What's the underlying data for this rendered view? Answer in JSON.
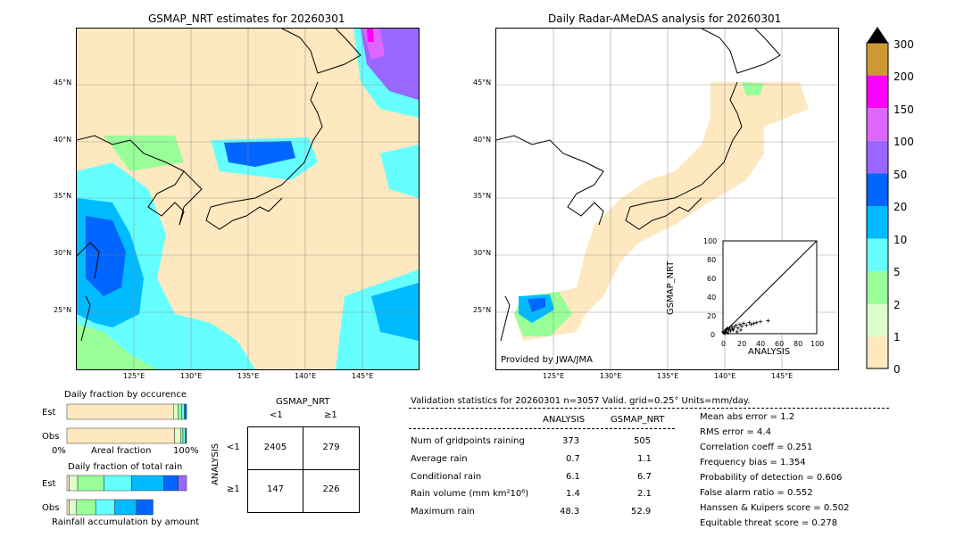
{
  "map_left": {
    "title": "GSMAP_NRT estimates for 20260301",
    "lat_ticks": [
      "45°N",
      "40°N",
      "35°N",
      "30°N",
      "25°N"
    ],
    "lon_ticks": [
      "125°E",
      "130°E",
      "135°E",
      "140°E",
      "145°E"
    ]
  },
  "map_right": {
    "title": "Daily Radar-AMeDAS analysis for 20260301",
    "lat_ticks": [
      "45°N",
      "40°N",
      "35°N",
      "30°N",
      "25°N"
    ],
    "lon_ticks": [
      "125°E",
      "130°E",
      "135°E",
      "140°E",
      "145°E"
    ],
    "credit": "Provided by JWA/JMA"
  },
  "colorbar": {
    "labels": [
      "300",
      "200",
      "150",
      "100",
      "50",
      "20",
      "10",
      "5",
      "2",
      "1",
      "0"
    ],
    "colors": [
      "#cc9933",
      "#ff00ff",
      "#dd66ff",
      "#9966ff",
      "#0066ff",
      "#00bbff",
      "#66ffff",
      "#99ff99",
      "#ddffcc",
      "#fde8c0"
    ],
    "extend_color": "#000000"
  },
  "chart_data": [
    {
      "type": "scatter",
      "xlabel": "ANALYSIS",
      "ylabel": "GSMAP_NRT",
      "xlim": [
        0,
        100
      ],
      "ylim": [
        0,
        100
      ],
      "x_ticks": [
        "0",
        "20",
        "40",
        "60",
        "80",
        "100"
      ],
      "y_ticks": [
        "0",
        "20",
        "40",
        "60",
        "80",
        "100"
      ],
      "points": [
        [
          1,
          1
        ],
        [
          2,
          3
        ],
        [
          3,
          2
        ],
        [
          4,
          5
        ],
        [
          5,
          1
        ],
        [
          6,
          4
        ],
        [
          7,
          6
        ],
        [
          8,
          3
        ],
        [
          9,
          8
        ],
        [
          10,
          5
        ],
        [
          12,
          7
        ],
        [
          14,
          9
        ],
        [
          16,
          6
        ],
        [
          18,
          10
        ],
        [
          20,
          8
        ],
        [
          22,
          11
        ],
        [
          25,
          9
        ],
        [
          28,
          12
        ],
        [
          30,
          10
        ],
        [
          33,
          11
        ],
        [
          36,
          12
        ],
        [
          40,
          13
        ],
        [
          48,
          14
        ],
        [
          2,
          0
        ],
        [
          0,
          2
        ],
        [
          3,
          4
        ],
        [
          5,
          6
        ],
        [
          11,
          4
        ],
        [
          15,
          2
        ],
        [
          19,
          4
        ]
      ]
    },
    {
      "type": "bar",
      "title": "Daily fraction by occurence",
      "categories": [
        "Est",
        "Obs"
      ],
      "xlabel": "Areal fraction",
      "x_ticks": [
        "0%",
        "100%"
      ],
      "series": [
        {
          "values": [
            0.89,
            0.9
          ],
          "color": "#fde8c0"
        },
        {
          "values": [
            0.04,
            0.05
          ],
          "color": "#ddffcc"
        },
        {
          "values": [
            0.03,
            0.02
          ],
          "color": "#99ff99"
        },
        {
          "values": [
            0.02,
            0.02
          ],
          "color": "#66ffff"
        },
        {
          "values": [
            0.01,
            0.005
          ],
          "color": "#00bbff"
        },
        {
          "values": [
            0.01,
            0.005
          ],
          "color": "#0066ff"
        }
      ]
    },
    {
      "type": "bar",
      "title": "Daily fraction of total rain",
      "categories": [
        "Est",
        "Obs"
      ],
      "xlabel": "Rainfall accumulation by amount",
      "series": [
        {
          "values": [
            0.02,
            0.02
          ],
          "color": "#fde8c0"
        },
        {
          "values": [
            0.07,
            0.06
          ],
          "color": "#ddffcc"
        },
        {
          "values": [
            0.22,
            0.16
          ],
          "color": "#99ff99"
        },
        {
          "values": [
            0.23,
            0.16
          ],
          "color": "#66ffff"
        },
        {
          "values": [
            0.27,
            0.18
          ],
          "color": "#00bbff"
        },
        {
          "values": [
            0.12,
            0.14
          ],
          "color": "#0066ff"
        },
        {
          "values": [
            0.07,
            0.0
          ],
          "color": "#9966ff"
        }
      ]
    }
  ],
  "contingency": {
    "title": "GSMAP_NRT",
    "col_labels": [
      "<1",
      "≥1"
    ],
    "row_axis": "ANALYSIS",
    "row_labels": [
      "<1",
      "≥1"
    ],
    "cells": [
      [
        "2405",
        "279"
      ],
      [
        "147",
        "226"
      ]
    ]
  },
  "validation": {
    "header": "Validation statistics for 20260301  n=3057 Valid. grid=0.25° Units=mm/day.",
    "col_analysis": "ANALYSIS",
    "col_gsmap": "GSMAP_NRT",
    "rows": [
      {
        "label": "Num of gridpoints raining",
        "analysis": "373",
        "gsmap": "505"
      },
      {
        "label": "Average rain",
        "analysis": "0.7",
        "gsmap": "1.1"
      },
      {
        "label": "Conditional rain",
        "analysis": "6.1",
        "gsmap": "6.7"
      },
      {
        "label": "Rain volume (mm km²10⁶)",
        "analysis": "1.4",
        "gsmap": "2.1"
      },
      {
        "label": "Maximum rain",
        "analysis": "48.3",
        "gsmap": "52.9"
      }
    ],
    "scores": [
      "Mean abs error =    1.2",
      "RMS error =    4.4",
      "Correlation coeff =  0.251",
      "Frequency bias =  1.354",
      "Probability of detection =  0.606",
      "False alarm ratio =  0.552",
      "Hanssen & Kuipers score =  0.502",
      "Equitable threat score =  0.278"
    ]
  }
}
